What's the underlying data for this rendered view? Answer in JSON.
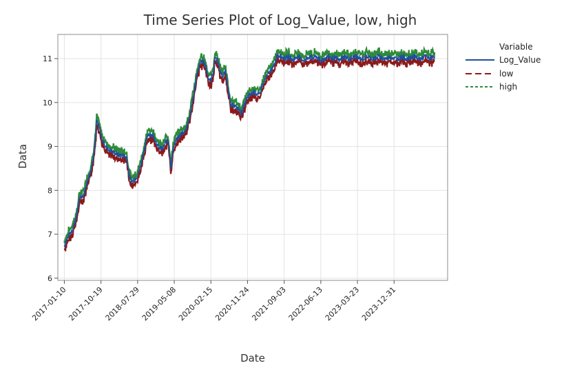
{
  "chart_data": {
    "type": "line",
    "title": "Time Series Plot of Log_Value, low, high",
    "xlabel": "Date",
    "ylabel": "Data",
    "ylim": [
      5.95,
      11.55
    ],
    "yticks": [
      6,
      7,
      8,
      9,
      10,
      11
    ],
    "x_tick_labels": [
      "2017-01-10",
      "2017-10-19",
      "2018-07-29",
      "2019-05-08",
      "2020-02-15",
      "2020-11-24",
      "2021-09-03",
      "2022-06-13",
      "2023-03-23",
      "2023-12-31"
    ],
    "x_tick_step_days": 282,
    "x_range_days": [
      -50,
      2950
    ],
    "grid": true,
    "legend": {
      "title": "Variable",
      "placement": "top-right",
      "entries": [
        {
          "name": "Log_Value",
          "color": "#1f4fa0",
          "style": "solid"
        },
        {
          "name": "low",
          "color": "#8b1a1a",
          "style": "long-dash"
        },
        {
          "name": "high",
          "color": "#2e8b3a",
          "style": "short-dash"
        }
      ]
    },
    "series_days": [
      0,
      30,
      60,
      90,
      120,
      150,
      180,
      200,
      220,
      240,
      250,
      270,
      290,
      310,
      330,
      360,
      390,
      420,
      450,
      480,
      500,
      520,
      540,
      565,
      590,
      620,
      650,
      680,
      700,
      720,
      740,
      760,
      780,
      800,
      820,
      840,
      860,
      880,
      900,
      930,
      960,
      990,
      1020,
      1050,
      1080,
      1110,
      1130,
      1150,
      1160,
      1180,
      1200,
      1220,
      1240,
      1260,
      1280,
      1300,
      1320,
      1340,
      1360,
      1380,
      1400,
      1420,
      1440,
      1460,
      1480,
      1500,
      1520,
      1550,
      1580,
      1610,
      1640,
      1670,
      1700,
      1730,
      1760,
      1790,
      1820,
      1850,
      1880,
      1910,
      1940,
      1970,
      2000,
      2030,
      2060,
      2090,
      2120,
      2150,
      2180,
      2210,
      2240,
      2270,
      2300,
      2330,
      2360,
      2390,
      2420,
      2450,
      2480,
      2510,
      2540,
      2570,
      2600,
      2630,
      2660,
      2690,
      2720,
      2750,
      2780,
      2810,
      2850
    ],
    "series": [
      {
        "name": "Log_Value",
        "values": [
          6.75,
          6.95,
          7.1,
          7.35,
          7.85,
          7.9,
          8.25,
          8.4,
          8.7,
          9.2,
          9.6,
          9.4,
          9.15,
          9.05,
          8.95,
          8.9,
          8.85,
          8.8,
          8.8,
          8.75,
          8.3,
          8.2,
          8.25,
          8.35,
          8.6,
          9.0,
          9.3,
          9.25,
          9.15,
          9.0,
          8.95,
          8.95,
          9.1,
          9.15,
          8.5,
          9.0,
          9.15,
          9.2,
          9.3,
          9.35,
          9.6,
          10.1,
          10.6,
          10.95,
          10.9,
          10.55,
          10.5,
          10.75,
          11.05,
          10.95,
          10.7,
          10.6,
          10.7,
          10.35,
          9.9,
          9.95,
          9.9,
          9.85,
          9.75,
          9.9,
          10.05,
          10.15,
          10.2,
          10.25,
          10.2,
          10.15,
          10.35,
          10.55,
          10.7,
          10.8,
          11.1,
          11.05,
          11.0,
          11.05,
          10.95,
          11.05,
          11.0,
          10.95,
          11.05,
          11.0,
          11.05,
          10.95,
          11.0,
          11.05,
          11.0,
          11.0,
          10.95,
          11.05,
          11.0,
          11.0,
          11.05,
          11.0,
          11.0,
          11.05,
          11.0,
          11.0,
          11.05,
          11.0,
          11.0,
          11.05,
          11.0,
          11.0,
          11.05,
          11.0,
          11.0,
          11.05,
          11.0,
          11.0,
          11.05,
          11.0,
          11.05
        ]
      }
    ]
  }
}
